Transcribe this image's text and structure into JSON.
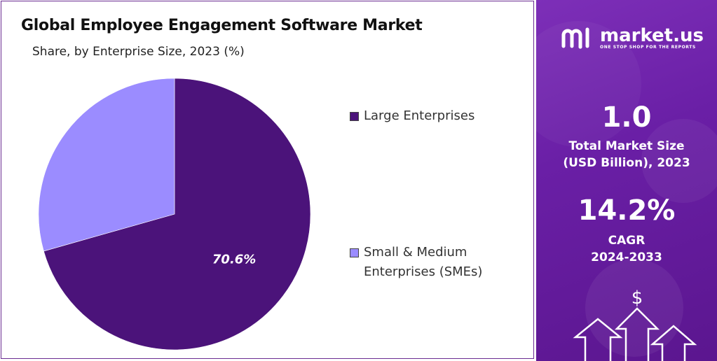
{
  "chart_data": {
    "type": "pie",
    "title": "Global Employee Engagement Software Market",
    "subtitle": "Share, by Enterprise Size, 2023 (%)",
    "series": [
      {
        "name": "Large Enterprises",
        "value": 70.6,
        "label": "70.6%",
        "color": "#4b137a"
      },
      {
        "name": "Small & Medium Enterprises (SMEs)",
        "value": 29.4,
        "label": "",
        "color": "#9b8cff"
      }
    ],
    "legend_position": "right"
  },
  "legend": {
    "large": "Large Enterprises",
    "sme_line1": "Small & Medium",
    "sme_line2": "Enterprises (SMEs)"
  },
  "side_panel": {
    "brand": "market.us",
    "tagline": "ONE STOP SHOP FOR THE REPORTS",
    "market_size_value": "1.0",
    "market_size_label_1": "Total Market Size",
    "market_size_label_2": "(USD Billion), 2023",
    "cagr_value": "14.2%",
    "cagr_label_1": "CAGR",
    "cagr_label_2": "2024-2033",
    "dollar_symbol": "$"
  },
  "colors": {
    "large": "#4b137a",
    "sme": "#9b8cff",
    "panel": "#6a1fa6"
  }
}
